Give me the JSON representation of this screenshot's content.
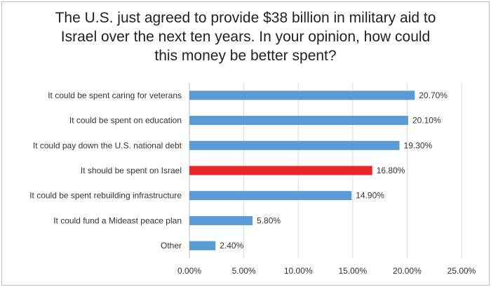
{
  "chart_data": {
    "type": "bar",
    "orientation": "horizontal",
    "title_lines": [
      "The U.S. just agreed to provide $38 billion in military aid to",
      "Israel over the next ten years. In your opinion, how could",
      "this money be better spent?"
    ],
    "categories": [
      "It could be spent caring for veterans",
      "It could be spent on education",
      "It could pay down the U.S. national debt",
      "It should be spent on Israel",
      "It could be spent rebuilding infrastructure",
      "It could fund a Mideast peace plan",
      "Other"
    ],
    "values": [
      20.7,
      20.1,
      19.3,
      16.8,
      14.9,
      5.8,
      2.4
    ],
    "value_labels": [
      "20.70%",
      "20.10%",
      "19.30%",
      "16.80%",
      "14.90%",
      "5.80%",
      "2.40%"
    ],
    "bar_colors": [
      "#5b9bd5",
      "#5b9bd5",
      "#5b9bd5",
      "#e8252b",
      "#5b9bd5",
      "#5b9bd5",
      "#5b9bd5"
    ],
    "xlim": [
      0,
      25
    ],
    "x_ticks": [
      0,
      5,
      10,
      15,
      20,
      25
    ],
    "x_tick_labels": [
      "0.00%",
      "5.00%",
      "10.00%",
      "15.00%",
      "20.00%",
      "25.00%"
    ],
    "grid": true,
    "xlabel": "",
    "ylabel": ""
  }
}
